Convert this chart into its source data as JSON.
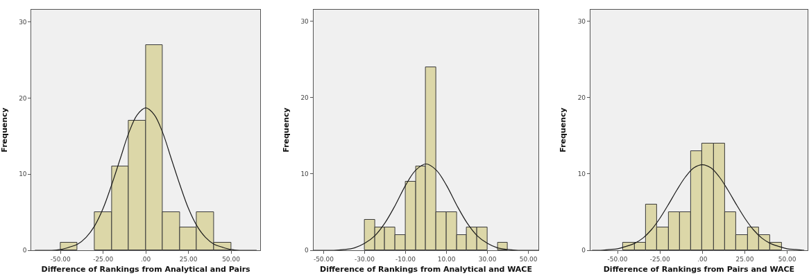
{
  "chart_data": [
    {
      "type": "histogram",
      "xlabel": "Difference of Rankings from Analytical and Pairs",
      "ylabel": "Frequency",
      "series": [
        {
          "type": "histogram",
          "bins": [
            -50,
            -40,
            -30,
            -20,
            -10,
            0,
            10,
            20,
            30,
            40,
            50
          ],
          "values": [
            1,
            0,
            5,
            11,
            17,
            27,
            5,
            3,
            5,
            1
          ],
          "color": "#dcd7a8"
        },
        {
          "type": "line",
          "color": "#1a1a1a",
          "x": [
            -65,
            -55,
            -50,
            -45,
            -40,
            -35,
            -30,
            -25,
            -20,
            -15,
            -10,
            -5,
            0,
            5,
            10,
            15,
            20,
            25,
            30,
            35,
            40,
            45,
            50,
            55,
            65
          ],
          "values": [
            0.0,
            0.0,
            0.1,
            0.4,
            0.8,
            1.7,
            3.2,
            5.5,
            8.6,
            12.0,
            15.4,
            17.8,
            18.7,
            17.8,
            15.4,
            12.0,
            8.6,
            5.5,
            3.2,
            1.7,
            0.8,
            0.4,
            0.1,
            0.0,
            0.0
          ]
        }
      ],
      "xlim": [
        -67,
        67
      ],
      "xticks": [
        {
          "value": -50,
          "label": "-50.00"
        },
        {
          "value": -25,
          "label": "-25.00"
        },
        {
          "value": 0,
          "label": ".00"
        },
        {
          "value": 25,
          "label": "25.00"
        },
        {
          "value": 50,
          "label": "50.00"
        }
      ],
      "ylim": [
        0,
        31.6
      ],
      "yticks": [
        0,
        10,
        20,
        30
      ],
      "grid": false
    },
    {
      "type": "histogram",
      "xlabel": "Difference of Rankings from Analytical and WACE",
      "ylabel": "Frequency",
      "series": [
        {
          "type": "histogram",
          "bins": [
            -30,
            -25,
            -20,
            -15,
            -10,
            -5,
            0,
            5,
            10,
            15,
            20,
            25,
            30,
            35,
            40
          ],
          "values": [
            4,
            3,
            3,
            2,
            9,
            11,
            24,
            5,
            5,
            2,
            3,
            3,
            0,
            1
          ],
          "color": "#dcd7a8"
        },
        {
          "type": "line",
          "color": "#1a1a1a",
          "x": [
            -55,
            -45,
            -40,
            -35,
            -30,
            -25,
            -20,
            -15,
            -10,
            -5,
            0,
            5,
            10,
            15,
            20,
            25,
            30,
            35,
            40,
            45,
            55
          ],
          "values": [
            0.0,
            0.0,
            0.1,
            0.3,
            0.9,
            1.9,
            3.6,
            5.9,
            8.5,
            10.5,
            11.3,
            10.5,
            8.5,
            5.9,
            3.6,
            1.9,
            0.9,
            0.3,
            0.1,
            0.0,
            0.0
          ]
        }
      ],
      "xlim": [
        -55,
        55
      ],
      "xticks": [
        {
          "value": -50,
          "label": "-50.00"
        },
        {
          "value": -30,
          "label": "-30.00"
        },
        {
          "value": -10,
          "label": "-10.00"
        },
        {
          "value": 10,
          "label": "10.00"
        },
        {
          "value": 30,
          "label": "30.00"
        },
        {
          "value": 50,
          "label": "50.00"
        }
      ],
      "ylim": [
        0,
        31.5
      ],
      "yticks": [
        0,
        10,
        20,
        30
      ],
      "grid": false
    },
    {
      "type": "histogram",
      "xlabel": "Difference of Rankings from Pairs and WACE",
      "ylabel": "Frequency",
      "series": [
        {
          "type": "histogram",
          "bins": [
            -46.67,
            -40,
            -33.33,
            -26.67,
            -20,
            -13.33,
            -6.67,
            0,
            6.67,
            13.33,
            20,
            26.67,
            33.33,
            40,
            46.67
          ],
          "values": [
            1,
            1,
            6,
            3,
            5,
            5,
            13,
            14,
            14,
            5,
            2,
            3,
            2,
            1
          ],
          "color": "#dcd7a8"
        },
        {
          "type": "line",
          "color": "#1a1a1a",
          "x": [
            -65,
            -60,
            -55,
            -50,
            -45,
            -40,
            -35,
            -30,
            -25,
            -20,
            -15,
            -10,
            -5,
            0,
            5,
            10,
            15,
            20,
            25,
            30,
            35,
            40,
            45,
            50,
            55,
            60
          ],
          "values": [
            0.0,
            0.0,
            0.1,
            0.2,
            0.5,
            0.9,
            1.6,
            2.7,
            4.2,
            6.0,
            7.9,
            9.6,
            10.8,
            11.2,
            10.8,
            9.6,
            7.9,
            6.0,
            4.2,
            2.7,
            1.6,
            0.9,
            0.5,
            0.2,
            0.1,
            0.0
          ]
        }
      ],
      "xlim": [
        -66,
        62
      ],
      "xticks": [
        {
          "value": -50,
          "label": "-50.00"
        },
        {
          "value": -25,
          "label": "-25.00"
        },
        {
          "value": 0,
          "label": ".00"
        },
        {
          "value": 25,
          "label": "25.00"
        },
        {
          "value": 50,
          "label": "50.00"
        }
      ],
      "ylim": [
        0,
        31.5
      ],
      "yticks": [
        0,
        10,
        20,
        30
      ],
      "grid": false
    }
  ]
}
